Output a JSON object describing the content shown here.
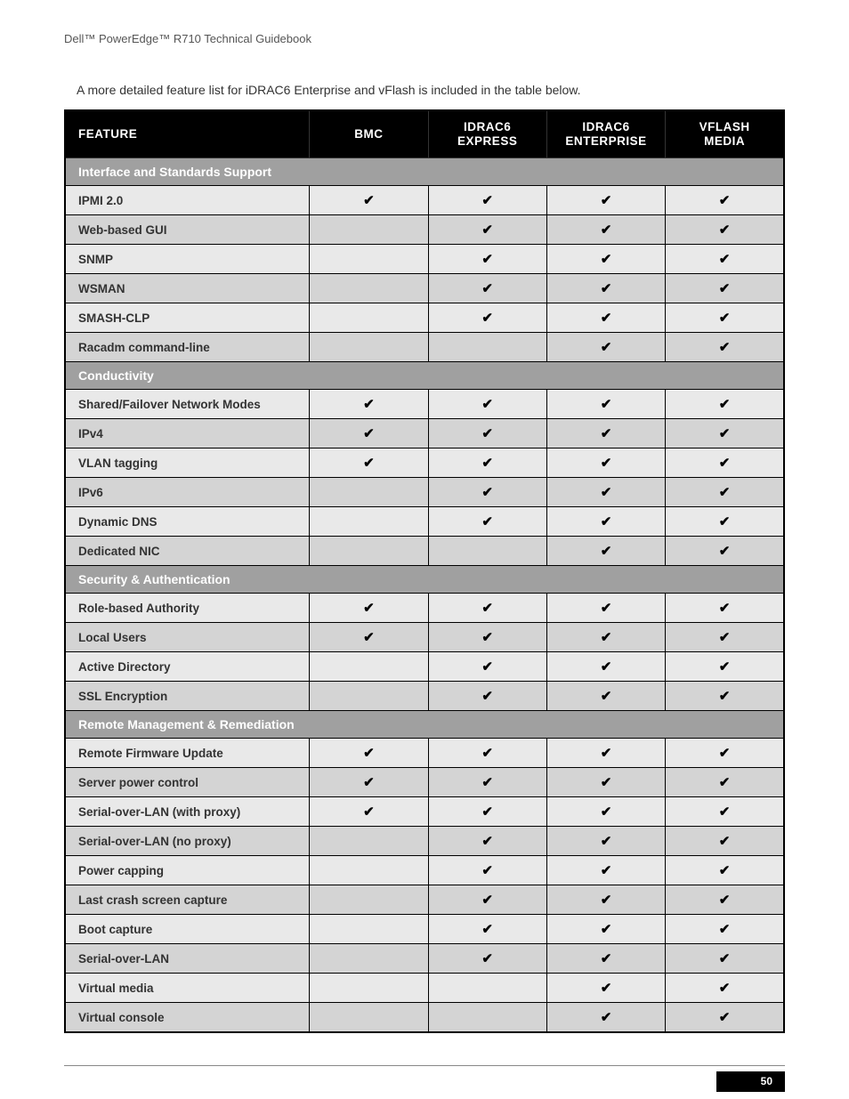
{
  "doc_title": "Dell™ PowerEdge™ R710 Technical Guidebook",
  "intro": "A more detailed feature list for iDRAC6 Enterprise and vFlash is included in the table below.",
  "page_number": "50",
  "check_glyph": "✔",
  "colors": {
    "header_bg": "#000000",
    "header_fg": "#ffffff",
    "section_bg": "#a0a0a0",
    "section_fg": "#ffffff",
    "row_even": "#e9e9e9",
    "row_odd": "#d4d4d4",
    "border": "#000000",
    "page_bg": "#ffffff"
  },
  "columns": [
    {
      "label": "Feature"
    },
    {
      "label": "BMC"
    },
    {
      "label": "iDRAC6 Express"
    },
    {
      "label": "iDRAC6 Enterprise"
    },
    {
      "label": "vFlash Media"
    }
  ],
  "rows": [
    {
      "type": "section",
      "label": "Interface and Standards Support"
    },
    {
      "type": "data",
      "label": "IPMI 2.0",
      "vals": [
        true,
        true,
        true,
        true
      ]
    },
    {
      "type": "data",
      "label": "Web-based GUI",
      "vals": [
        false,
        true,
        true,
        true
      ]
    },
    {
      "type": "data",
      "label": "SNMP",
      "vals": [
        false,
        true,
        true,
        true
      ]
    },
    {
      "type": "data",
      "label": "WSMAN",
      "vals": [
        false,
        true,
        true,
        true
      ]
    },
    {
      "type": "data",
      "label": "SMASH-CLP",
      "vals": [
        false,
        true,
        true,
        true
      ]
    },
    {
      "type": "data",
      "label": "Racadm command-line",
      "vals": [
        false,
        false,
        true,
        true
      ]
    },
    {
      "type": "section",
      "label": "Conductivity"
    },
    {
      "type": "data",
      "label": "Shared/Failover Network Modes",
      "vals": [
        true,
        true,
        true,
        true
      ]
    },
    {
      "type": "data",
      "label": "IPv4",
      "vals": [
        true,
        true,
        true,
        true
      ]
    },
    {
      "type": "data",
      "label": "VLAN tagging",
      "vals": [
        true,
        true,
        true,
        true
      ]
    },
    {
      "type": "data",
      "label": "IPv6",
      "vals": [
        false,
        true,
        true,
        true
      ]
    },
    {
      "type": "data",
      "label": "Dynamic DNS",
      "vals": [
        false,
        true,
        true,
        true
      ]
    },
    {
      "type": "data",
      "label": "Dedicated NIC",
      "vals": [
        false,
        false,
        true,
        true
      ]
    },
    {
      "type": "section",
      "label": "Security & Authentication"
    },
    {
      "type": "data",
      "label": "Role-based Authority",
      "vals": [
        true,
        true,
        true,
        true
      ]
    },
    {
      "type": "data",
      "label": "Local Users",
      "vals": [
        true,
        true,
        true,
        true
      ]
    },
    {
      "type": "data",
      "label": "Active Directory",
      "vals": [
        false,
        true,
        true,
        true
      ]
    },
    {
      "type": "data",
      "label": "SSL Encryption",
      "vals": [
        false,
        true,
        true,
        true
      ]
    },
    {
      "type": "section",
      "label": "Remote Management & Remediation"
    },
    {
      "type": "data",
      "label": "Remote Firmware Update",
      "vals": [
        true,
        true,
        true,
        true
      ]
    },
    {
      "type": "data",
      "label": "Server power control",
      "vals": [
        true,
        true,
        true,
        true
      ]
    },
    {
      "type": "data",
      "label": "Serial-over-LAN (with proxy)",
      "vals": [
        true,
        true,
        true,
        true
      ]
    },
    {
      "type": "data",
      "label": "Serial-over-LAN (no proxy)",
      "vals": [
        false,
        true,
        true,
        true
      ]
    },
    {
      "type": "data",
      "label": "Power capping",
      "vals": [
        false,
        true,
        true,
        true
      ]
    },
    {
      "type": "data",
      "label": "Last crash screen capture",
      "vals": [
        false,
        true,
        true,
        true
      ]
    },
    {
      "type": "data",
      "label": "Boot capture",
      "vals": [
        false,
        true,
        true,
        true
      ]
    },
    {
      "type": "data",
      "label": "Serial-over-LAN",
      "vals": [
        false,
        true,
        true,
        true
      ]
    },
    {
      "type": "data",
      "label": "Virtual media",
      "vals": [
        false,
        false,
        true,
        true
      ]
    },
    {
      "type": "data",
      "label": "Virtual console",
      "vals": [
        false,
        false,
        true,
        true
      ]
    }
  ]
}
